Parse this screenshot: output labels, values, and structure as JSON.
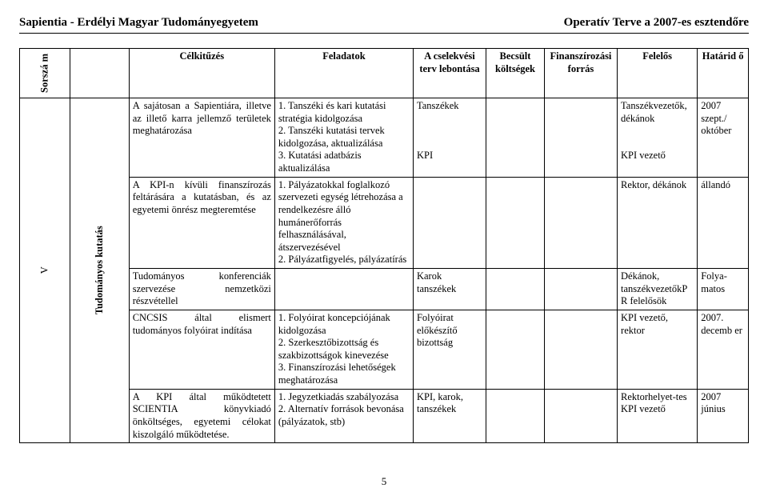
{
  "header": {
    "left": "Sapientia - Erdélyi Magyar Tudományegyetem",
    "right": "Operatív Terve a 2007-es esztendőre"
  },
  "columns": {
    "sorszam": "Sorszá\nm",
    "celkituzes": "Célkitűzés",
    "feladatok": "Feladatok",
    "cselekvesi": "A cselekvési terv lebontása",
    "becsult": "Becsült költségek",
    "finansz": "Finanszírozási forrás",
    "felelos": "Felelős",
    "hatarid": "Határid\nő"
  },
  "section": {
    "roman": "V",
    "category": "Tudományos kutatás"
  },
  "rows": [
    {
      "celk": "A sajátosan a Sapientiára, illetve az illető karra jellemző területek meghatározása",
      "fela": "1. Tanszéki és kari kutatási stratégia kidolgozása\n2. Tanszéki kutatási tervek kidolgozása, aktualizálása\n3. Kutatási adatbázis aktualizálása",
      "csel": "Tanszékek\n\n\n\nKPI",
      "becs": "",
      "fin": "",
      "fele": "Tanszékvezetők, dékánok\n\n\nKPI vezető",
      "hat": "2007 szept./ október"
    },
    {
      "celk": "A KPI-n kívüli finanszírozás feltárására a kutatásban, és az egyetemi önrész megteremtése",
      "fela": "1. Pályázatokkal foglalkozó szervezeti egység létrehozása a rendelkezésre álló humánerőforrás felhasználásával, átszervezésével\n2. Pályázatfigyelés, pályázatírás",
      "csel": "",
      "becs": "",
      "fin": "",
      "fele": "Rektor, dékánok",
      "hat": "állandó"
    },
    {
      "celk": "Tudományos konferenciák szervezése nemzetközi részvétellel",
      "fela": "",
      "csel": "Karok tanszékek",
      "becs": "",
      "fin": "",
      "fele": "Dékánok, tanszékvezetőkP R felelősök",
      "hat": "Folya-matos"
    },
    {
      "celk": "CNCSIS által elismert tudományos folyóirat indítása",
      "fela": "1. Folyóirat koncepciójának kidolgozása\n2. Szerkesztőbizottság és szakbizottságok kinevezése\n3. Finanszírozási lehetőségek meghatározása",
      "csel": "Folyóirat előkészítő bizottság",
      "becs": "",
      "fin": "",
      "fele": "KPI vezető, rektor",
      "hat": "2007. decemb er"
    },
    {
      "celk": "A KPI által működtetett SCIENTIA könyvkiadó önköltséges, egyetemi célokat kiszolgáló működtetése.",
      "fela": "1. Jegyzetkiadás szabályozása\n2. Alternatív források bevonása (pályázatok, stb)",
      "csel": "KPI, karok, tanszékek",
      "becs": "",
      "fin": "",
      "fele": "Rektorhelyet-tes KPI vezető",
      "hat": "2007 június"
    }
  ],
  "pagenum": "5"
}
